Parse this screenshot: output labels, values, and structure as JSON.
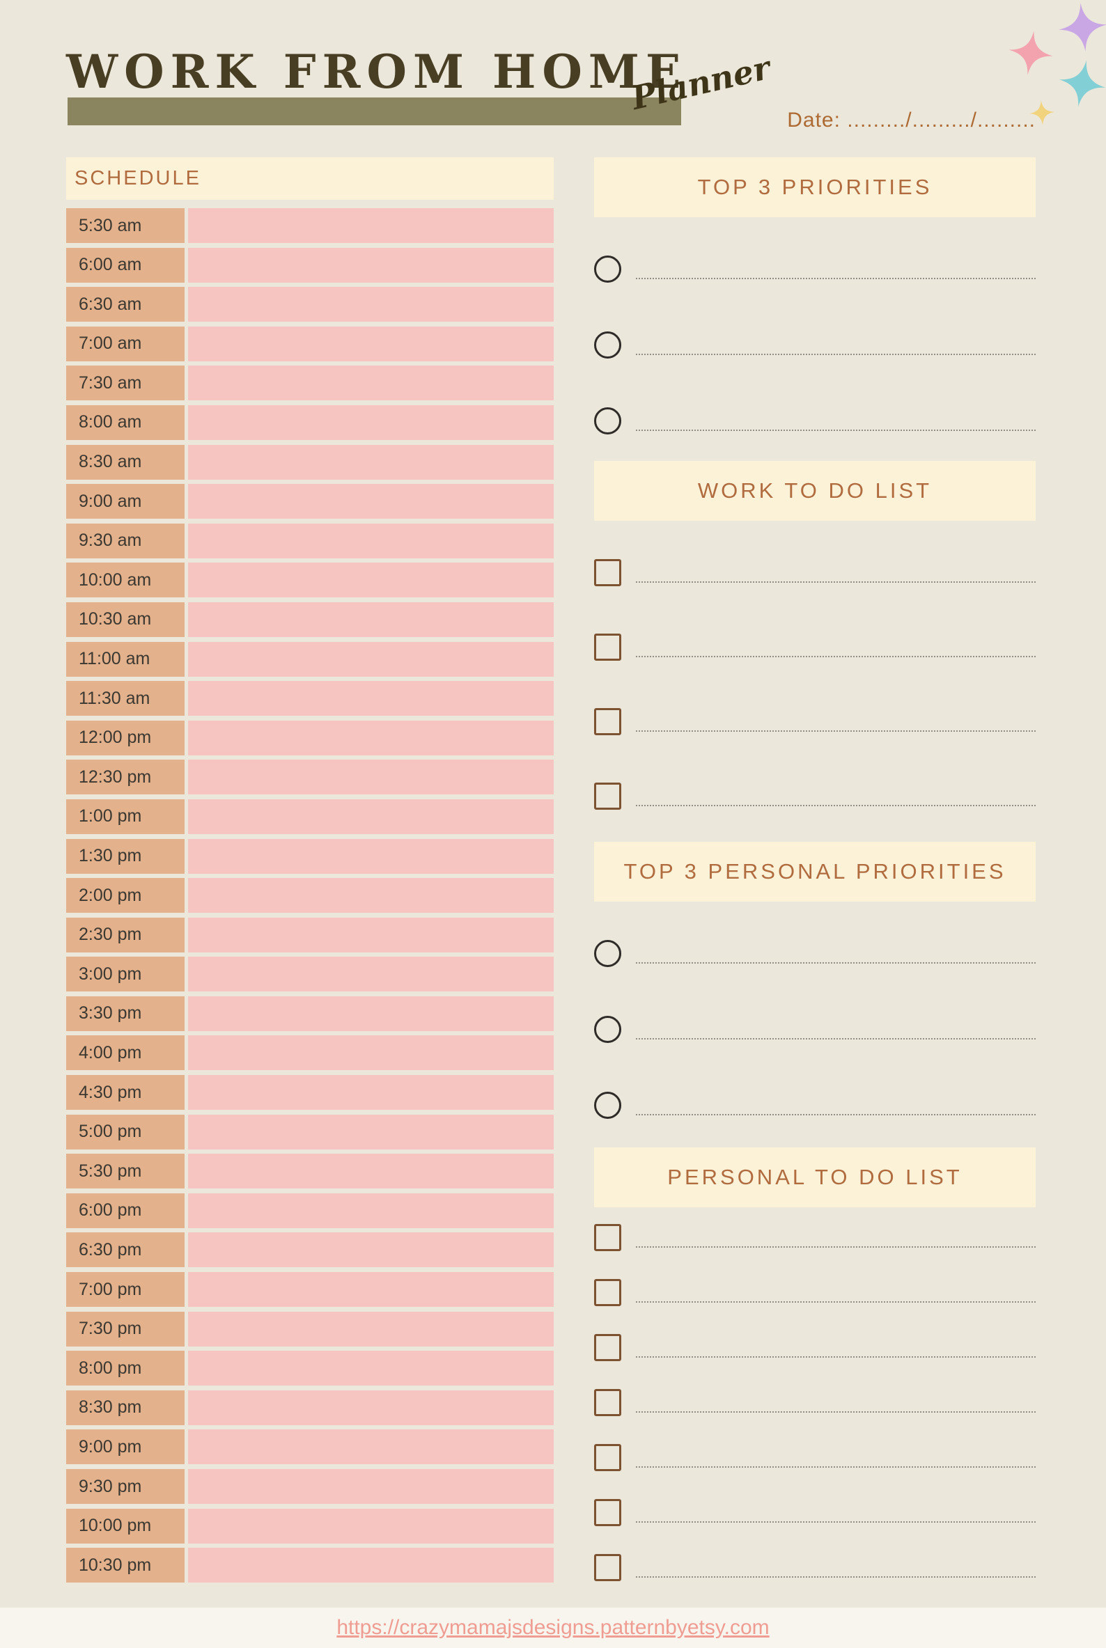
{
  "page": {
    "title": "WORK FROM HOME",
    "subtitle_script": "Planner",
    "date_label": "Date: ........./........./.........",
    "footer_link": "https://crazymamajsdesigns.patternbyetsy.com"
  },
  "schedule": {
    "header": "SCHEDULE",
    "times": [
      "5:30 am",
      "6:00 am",
      "6:30 am",
      "7:00 am",
      "7:30 am",
      "8:00 am",
      "8:30 am",
      "9:00 am",
      "9:30 am",
      "10:00 am",
      "10:30 am",
      "11:00 am",
      "11:30 am",
      "12:00 pm",
      "12:30 pm",
      "1:00 pm",
      "1:30 pm",
      "2:00 pm",
      "2:30 pm",
      "3:00 pm",
      "3:30 pm",
      "4:00 pm",
      "4:30 pm",
      "5:00 pm",
      "5:30 pm",
      "6:00 pm",
      "6:30 pm",
      "7:00 pm",
      "7:30 pm",
      "8:00 pm",
      "8:30 pm",
      "9:00 pm",
      "9:30 pm",
      "10:00 pm",
      "10:30 pm"
    ]
  },
  "sections": {
    "top_priorities": {
      "header": "TOP 3 PRIORITIES",
      "row_count": 3
    },
    "work_todo": {
      "header": "WORK TO DO LIST",
      "row_count": 4
    },
    "personal_priorities": {
      "header": "TOP 3 PERSONAL PRIORITIES",
      "row_count": 3
    },
    "personal_todo": {
      "header": "PERSONAL TO DO LIST",
      "row_count": 7
    }
  },
  "decor": {
    "sparkles": [
      {
        "name": "sparkle-pink",
        "color": "#f2a3ad"
      },
      {
        "name": "sparkle-purple",
        "color": "#c9a6e4"
      },
      {
        "name": "sparkle-teal",
        "color": "#83cfd6"
      },
      {
        "name": "sparkle-yellow",
        "color": "#f2d37d"
      }
    ]
  },
  "colors": {
    "page_background": "#ece7db",
    "title_text": "#473e23",
    "title_bar_olive": "#8b855f",
    "panel_header_cream": "#fcf2d8",
    "panel_header_text": "#b06b3e",
    "time_label_tan": "#e3b18c",
    "schedule_fill_pink": "#f6c5c2",
    "checkbox_brown": "#7c5230",
    "date_text": "#ad6a33",
    "footer_link": "#ef9d92"
  }
}
